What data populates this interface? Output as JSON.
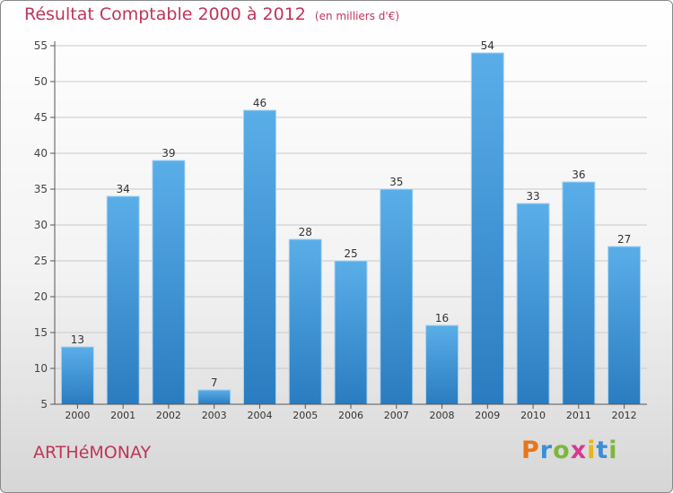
{
  "title": "Résultat Comptable 2000 à 2012",
  "subtitle": "(en milliers d'€)",
  "commune": "ARTHéMONAY",
  "logo": {
    "letters": [
      "P",
      "r",
      "o",
      "x",
      "i",
      "t",
      "i"
    ],
    "colors": [
      "#e8751a",
      "#3a8fd6",
      "#7ab83a",
      "#d63a8c",
      "#e8b51a",
      "#3a8fd6",
      "#7ab83a"
    ]
  },
  "colors": {
    "title": "#c0345a",
    "bar_light": "#5aaee8",
    "bar_dark": "#2a7cc0",
    "grid": "#c8c8c8"
  },
  "chart_data": {
    "type": "bar",
    "title": "Résultat Comptable 2000 à 2012",
    "xlabel": "",
    "ylabel": "",
    "categories": [
      "2000",
      "2001",
      "2002",
      "2003",
      "2004",
      "2005",
      "2006",
      "2007",
      "2008",
      "2009",
      "2010",
      "2011",
      "2012"
    ],
    "values": [
      13,
      34,
      39,
      7,
      46,
      28,
      25,
      35,
      16,
      54,
      33,
      36,
      27
    ],
    "ylim": [
      5,
      55
    ],
    "yticks": [
      5,
      10,
      15,
      20,
      25,
      30,
      35,
      40,
      45,
      50,
      55
    ],
    "grid": true
  }
}
